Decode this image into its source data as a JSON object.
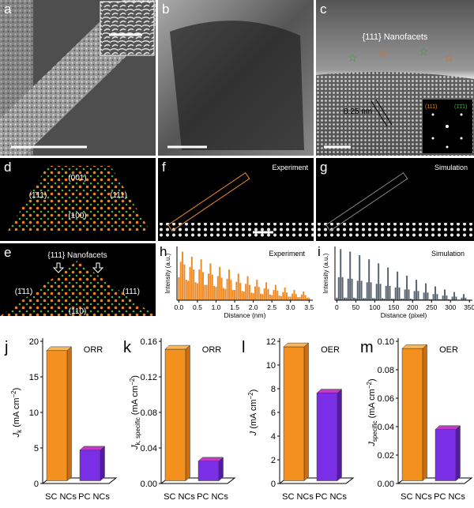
{
  "panels": {
    "a": {
      "label": "a"
    },
    "b": {
      "label": "b"
    },
    "c": {
      "label": "c",
      "annotation": "{111} Nanofacets",
      "spacing": "0.25 nm",
      "inset_labels": [
        "(111)",
        "(1̄1̄1)"
      ]
    },
    "d": {
      "label": "d",
      "facets": [
        "(001)",
        "(1̄11)",
        "(111)",
        "(100)"
      ]
    },
    "e": {
      "label": "e",
      "annotation": "{111} Nanofacets",
      "facets": [
        "(1̄11)",
        "(111)",
        "(110)"
      ]
    },
    "f": {
      "label": "f",
      "annotation": "Experiment"
    },
    "g": {
      "label": "g",
      "annotation": "Simulation"
    }
  },
  "chart_data": [
    {
      "type": "histogram",
      "label": "h",
      "annotation": "Experiment",
      "ylabel": "Intensity (a.u.)",
      "xlabel": "Distance (nm)",
      "color": "#f08a24",
      "x": [
        0,
        0.05,
        0.1,
        0.15,
        0.2,
        0.25,
        0.3,
        0.35,
        0.4,
        0.45,
        0.5,
        0.55,
        0.6,
        0.65,
        0.7,
        0.75,
        0.8,
        0.85,
        0.9,
        0.95,
        1,
        1.05,
        1.1,
        1.15,
        1.2,
        1.25,
        1.3,
        1.35,
        1.4,
        1.45,
        1.5,
        1.55,
        1.6,
        1.65,
        1.7,
        1.75,
        1.8,
        1.85,
        1.9,
        1.95,
        2,
        2.05,
        2.1,
        2.15,
        2.2,
        2.25,
        2.3,
        2.35,
        2.4,
        2.45,
        2.5,
        2.55,
        2.6,
        2.65,
        2.7,
        2.75,
        2.8,
        2.85,
        2.9,
        2.95,
        3,
        3.05,
        3.1,
        3.15,
        3.2,
        3.25,
        3.3,
        3.35,
        3.4,
        3.45,
        3.5
      ],
      "values": [
        0.45,
        0.75,
        0.95,
        0.7,
        0.4,
        0.38,
        0.65,
        0.85,
        0.6,
        0.35,
        0.33,
        0.6,
        0.8,
        0.55,
        0.3,
        0.3,
        0.52,
        0.72,
        0.5,
        0.28,
        0.26,
        0.47,
        0.65,
        0.44,
        0.24,
        0.22,
        0.42,
        0.6,
        0.4,
        0.2,
        0.2,
        0.36,
        0.52,
        0.34,
        0.18,
        0.17,
        0.32,
        0.47,
        0.3,
        0.15,
        0.14,
        0.27,
        0.4,
        0.26,
        0.13,
        0.12,
        0.23,
        0.35,
        0.22,
        0.11,
        0.1,
        0.2,
        0.3,
        0.19,
        0.09,
        0.08,
        0.16,
        0.25,
        0.15,
        0.07,
        0.07,
        0.13,
        0.2,
        0.12,
        0.06,
        0.06,
        0.11,
        0.17,
        0.1,
        0.05,
        0.05
      ],
      "xlim": [
        -0.05,
        3.6
      ],
      "ylim": [
        0,
        1.05
      ],
      "xticks": [
        {
          "value": 0,
          "label": "0.0"
        },
        0.5,
        {
          "value": 1,
          "label": "1.0"
        },
        1.5,
        {
          "value": 2,
          "label": "2.0"
        },
        2.5,
        {
          "value": 3,
          "label": "3.0"
        },
        3.5
      ]
    },
    {
      "type": "histogram",
      "label": "i",
      "annotation": "Simulation",
      "ylabel": "Intensity (a.u.)",
      "xlabel": "Distance (pixel)",
      "color": "#5b6670",
      "x": [
        0,
        5,
        10,
        15,
        20,
        25,
        30,
        35,
        40,
        45,
        50,
        55,
        60,
        65,
        70,
        75,
        80,
        85,
        90,
        95,
        100,
        105,
        110,
        115,
        120,
        125,
        130,
        135,
        140,
        145,
        150,
        155,
        160,
        165,
        170,
        175,
        180,
        185,
        190,
        195,
        200,
        205,
        210,
        215,
        220,
        225,
        230,
        235,
        240,
        245,
        250,
        255,
        260,
        265,
        270,
        275,
        280,
        285,
        290,
        295,
        300,
        305,
        310,
        315,
        320,
        325,
        330,
        335,
        340,
        345,
        350
      ],
      "values": [
        0.05,
        0.45,
        1.0,
        0.45,
        0.05,
        0.05,
        0.42,
        0.95,
        0.42,
        0.05,
        0.04,
        0.38,
        0.88,
        0.38,
        0.04,
        0.04,
        0.35,
        0.8,
        0.35,
        0.04,
        0.04,
        0.32,
        0.72,
        0.32,
        0.04,
        0.03,
        0.28,
        0.64,
        0.28,
        0.03,
        0.03,
        0.25,
        0.56,
        0.25,
        0.03,
        0.03,
        0.21,
        0.48,
        0.21,
        0.03,
        0.02,
        0.18,
        0.4,
        0.18,
        0.02,
        0.02,
        0.15,
        0.33,
        0.15,
        0.02,
        0.02,
        0.12,
        0.27,
        0.12,
        0.02,
        0.02,
        0.09,
        0.21,
        0.09,
        0.02,
        0.01,
        0.07,
        0.16,
        0.07,
        0.01,
        0.01,
        0.05,
        0.12,
        0.05,
        0.01,
        0.01
      ],
      "xlim": [
        -5,
        358
      ],
      "ylim": [
        0,
        1.05
      ],
      "xticks": [
        0,
        50,
        100,
        150,
        200,
        250,
        300,
        350
      ]
    },
    {
      "type": "bar3d",
      "label": "j",
      "annotation": "ORR",
      "ylabel": [
        "J",
        "k",
        " (mA cm",
        "−2",
        ")"
      ],
      "ylabel_style": [
        "italic",
        "sub",
        "normal",
        "sup",
        "normal"
      ],
      "categories": [
        "SC NCs",
        "PC NCs"
      ],
      "values": [
        18.3,
        4.3
      ],
      "colors": [
        "#f4911e",
        "#7a2fe6"
      ],
      "ylim": [
        0,
        20
      ],
      "yticks": [
        0,
        5,
        10,
        15,
        20
      ]
    },
    {
      "type": "bar3d",
      "label": "k",
      "annotation": "ORR",
      "ylabel": [
        "J",
        "k, specific",
        " (mA cm",
        "−2",
        ")"
      ],
      "ylabel_style": [
        "italic",
        "sub",
        "normal",
        "sup",
        "normal"
      ],
      "categories": [
        "SC NCs",
        "PC NCs"
      ],
      "values": [
        0.148,
        0.022
      ],
      "colors": [
        "#f4911e",
        "#7a2fe6"
      ],
      "ylim": [
        0,
        0.16
      ],
      "yticks": [
        {
          "value": 0,
          "label": "0.00"
        },
        {
          "value": 0.04,
          "label": "0.04"
        },
        {
          "value": 0.08,
          "label": "0.08"
        },
        {
          "value": 0.12,
          "label": "0.12"
        },
        {
          "value": 0.16,
          "label": "0.16"
        }
      ]
    },
    {
      "type": "bar3d",
      "label": "l",
      "annotation": "OER",
      "ylabel": [
        "J",
        " (mA cm",
        "−2",
        ")"
      ],
      "ylabel_style": [
        "italic",
        "normal",
        "sup",
        "normal"
      ],
      "categories": [
        "SC NCs",
        "PC NCs"
      ],
      "values": [
        11.3,
        7.4
      ],
      "colors": [
        "#f4911e",
        "#7a2fe6"
      ],
      "ylim": [
        0,
        12
      ],
      "yticks": [
        0,
        2,
        4,
        6,
        8,
        10,
        12
      ]
    },
    {
      "type": "bar3d",
      "label": "m",
      "annotation": "OER",
      "ylabel": [
        "J",
        "specific",
        " (mA cm",
        "−2",
        ")"
      ],
      "ylabel_style": [
        "italic",
        "sub",
        "normal",
        "sup",
        "normal"
      ],
      "categories": [
        "SC NCs",
        "PC NCs"
      ],
      "values": [
        0.093,
        0.036
      ],
      "colors": [
        "#f4911e",
        "#7a2fe6"
      ],
      "ylim": [
        0,
        0.1
      ],
      "yticks": [
        {
          "value": 0,
          "label": "0.00"
        },
        {
          "value": 0.02,
          "label": "0.02"
        },
        {
          "value": 0.04,
          "label": "0.04"
        },
        {
          "value": 0.06,
          "label": "0.06"
        },
        {
          "value": 0.08,
          "label": "0.08"
        },
        {
          "value": 0.1,
          "label": "0.10"
        }
      ]
    }
  ]
}
